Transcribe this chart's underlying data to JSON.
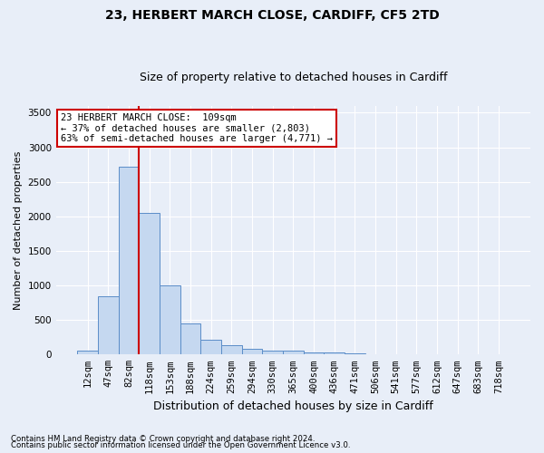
{
  "title1": "23, HERBERT MARCH CLOSE, CARDIFF, CF5 2TD",
  "title2": "Size of property relative to detached houses in Cardiff",
  "xlabel": "Distribution of detached houses by size in Cardiff",
  "ylabel": "Number of detached properties",
  "footnote1": "Contains HM Land Registry data © Crown copyright and database right 2024.",
  "footnote2": "Contains public sector information licensed under the Open Government Licence v3.0.",
  "bar_labels": [
    "12sqm",
    "47sqm",
    "82sqm",
    "118sqm",
    "153sqm",
    "188sqm",
    "224sqm",
    "259sqm",
    "294sqm",
    "330sqm",
    "365sqm",
    "400sqm",
    "436sqm",
    "471sqm",
    "506sqm",
    "541sqm",
    "577sqm",
    "612sqm",
    "647sqm",
    "683sqm",
    "718sqm"
  ],
  "bar_values": [
    60,
    840,
    2720,
    2050,
    1000,
    450,
    210,
    140,
    80,
    60,
    55,
    25,
    25,
    15,
    8,
    5,
    3,
    2,
    2,
    1,
    1
  ],
  "bar_color": "#c5d8f0",
  "bar_edge_color": "#5b8dc8",
  "ylim": [
    0,
    3600
  ],
  "yticks": [
    0,
    500,
    1000,
    1500,
    2000,
    2500,
    3000,
    3500
  ],
  "red_line_x": 2.5,
  "annotation_text": "23 HERBERT MARCH CLOSE:  109sqm\n← 37% of detached houses are smaller (2,803)\n63% of semi-detached houses are larger (4,771) →",
  "annotation_box_color": "#ffffff",
  "annotation_box_edge": "#cc0000",
  "background_color": "#e8eef8",
  "grid_color": "#ffffff",
  "title1_fontsize": 10,
  "title2_fontsize": 9,
  "ylabel_fontsize": 8,
  "xlabel_fontsize": 9,
  "tick_fontsize": 7.5,
  "annot_fontsize": 7.5
}
